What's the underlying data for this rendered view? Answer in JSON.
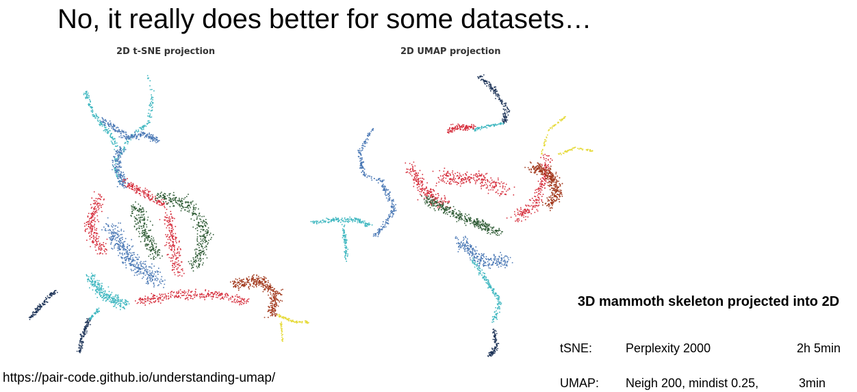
{
  "slide": {
    "title": "No, it really does better for some datasets…"
  },
  "plots": {
    "tsne_title": "2D t-SNE projection",
    "umap_title": "2D UMAP projection"
  },
  "colors": {
    "red": "#d62f3d",
    "steel_blue": "#4a78b5",
    "cyan": "#3fb7c0",
    "navy": "#1f3559",
    "dark_green": "#2f5b35",
    "brown": "#a23a1e",
    "yellow": "#e6da3a"
  },
  "caption": {
    "heading": "3D mammoth skeleton projected into 2D"
  },
  "timings": {
    "tsne": {
      "label": "tSNE:",
      "params": "Perplexity 2000",
      "time": "2h 5min"
    },
    "umap": {
      "label": "UMAP:",
      "params": "Neigh 200, mindist 0.25,",
      "time": "3min"
    }
  },
  "source": {
    "url": "https://pair-code.github.io/understanding-umap/"
  }
}
